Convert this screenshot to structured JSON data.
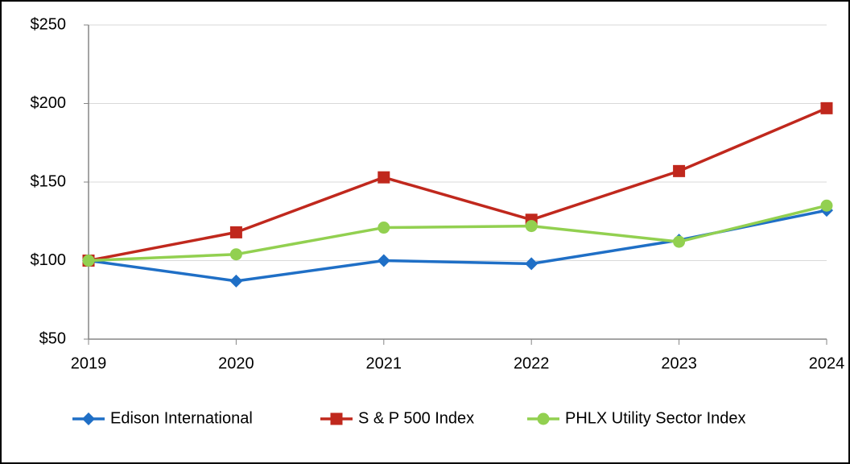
{
  "chart_data": {
    "type": "line",
    "categories": [
      "2019",
      "2020",
      "2021",
      "2022",
      "2023",
      "2024"
    ],
    "series": [
      {
        "name": "Edison International",
        "color": "#1f6fc6",
        "marker": "diamond",
        "values": [
          100,
          87,
          100,
          98,
          113,
          132
        ]
      },
      {
        "name": "S & P 500 Index",
        "color": "#c0281d",
        "marker": "square",
        "values": [
          100,
          118,
          153,
          126,
          157,
          197
        ]
      },
      {
        "name": "PHLX Utility Sector Index",
        "color": "#92d050",
        "marker": "circle",
        "values": [
          100,
          104,
          121,
          122,
          112,
          135
        ]
      }
    ],
    "ylim": [
      50,
      250
    ],
    "yticks": [
      {
        "value": 50,
        "label": "$50"
      },
      {
        "value": 100,
        "label": "$100"
      },
      {
        "value": 150,
        "label": "$150"
      },
      {
        "value": 200,
        "label": "$200"
      },
      {
        "value": 250,
        "label": "$250"
      }
    ],
    "grid": true,
    "legend": "bottom"
  }
}
